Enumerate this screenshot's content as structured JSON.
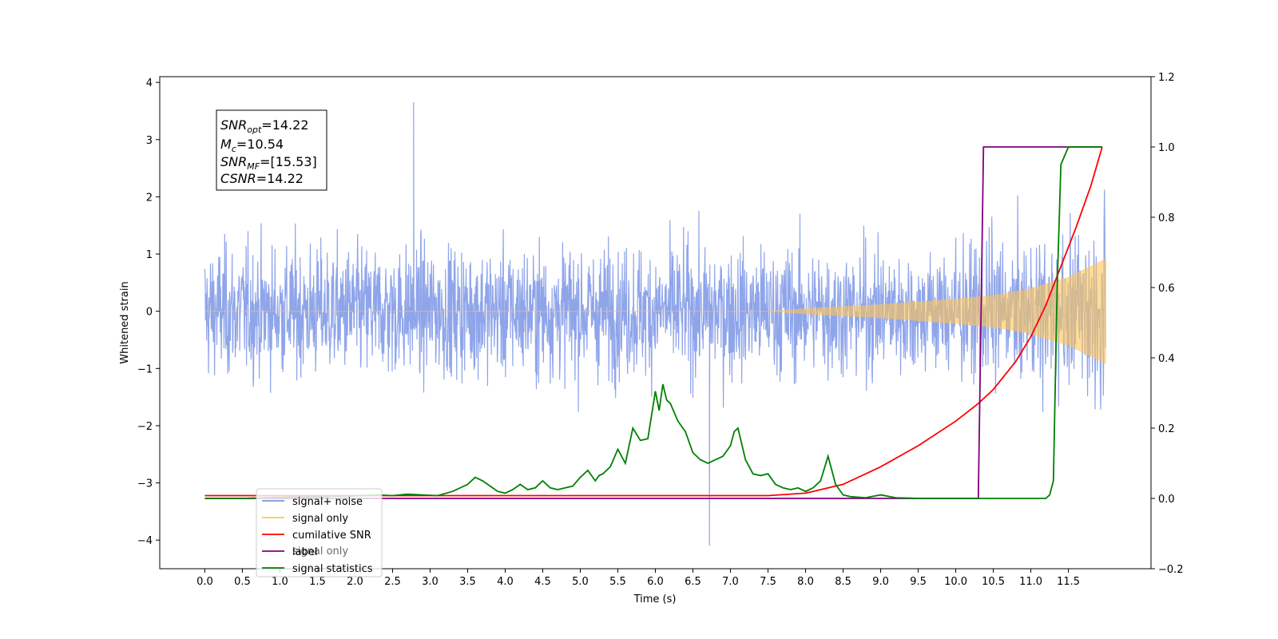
{
  "chart_data": {
    "type": "line",
    "xlabel": "Time (s)",
    "ylabel_left": "Whitened strain",
    "x_range": [
      -0.6,
      12.6
    ],
    "ylim_left": [
      -4.5,
      4.1
    ],
    "ylim_right": [
      -0.2,
      1.2
    ],
    "x_ticks": [
      "0.0",
      "0.5",
      "1.0",
      "1.5",
      "2.0",
      "2.5",
      "3.0",
      "3.5",
      "4.0",
      "4.5",
      "5.0",
      "5.5",
      "6.0",
      "6.5",
      "7.0",
      "7.5",
      "8.0",
      "8.5",
      "9.0",
      "9.5",
      "10.0",
      "10.5",
      "11.0",
      "11.5"
    ],
    "y_ticks_left": [
      "4",
      "3",
      "2",
      "1",
      "0",
      "−1",
      "−2",
      "−3",
      "−4"
    ],
    "y_ticks_right": [
      "1.2",
      "1.0",
      "0.8",
      "0.6",
      "0.4",
      "0.2",
      "0.0",
      "−0.2"
    ],
    "grid": false,
    "legend_position": "lower-left",
    "annotation": {
      "snr_opt": "=14.22",
      "mc": "=10.54",
      "snr_mf": "=[15.53]",
      "csnr": "=14.22"
    },
    "series": [
      {
        "name": "signal+ noise",
        "axis": "left",
        "color": "#7b95e6",
        "description_values": {
          "x_start": 0.0,
          "x_end": 12.0,
          "typical_amplitude": 1.0,
          "max": 3.65,
          "min": -4.1,
          "min_at_x": 6.72,
          "max_at_x": 2.78
        }
      },
      {
        "name": "signal only",
        "axis": "left",
        "color": "#ffc457",
        "envelope": {
          "x": [
            0.0,
            7.5,
            8.0,
            9.0,
            10.0,
            10.5,
            11.0,
            11.5,
            12.0
          ],
          "amp": [
            0.0,
            0.0,
            0.05,
            0.12,
            0.22,
            0.28,
            0.4,
            0.6,
            0.92
          ]
        }
      },
      {
        "name": "cumilative SNR",
        "axis": "right",
        "color": "#ff0000",
        "x": [
          0.0,
          7.5,
          8.0,
          8.5,
          9.0,
          9.5,
          10.0,
          10.3,
          10.5,
          10.8,
          11.0,
          11.2,
          11.4,
          11.6,
          11.8,
          11.95
        ],
        "values": [
          0.008,
          0.008,
          0.015,
          0.04,
          0.09,
          0.15,
          0.22,
          0.27,
          0.31,
          0.39,
          0.46,
          0.55,
          0.66,
          0.77,
          0.89,
          1.0
        ]
      },
      {
        "name": "label",
        "axis": "right",
        "color": "#800080",
        "x": [
          0.0,
          10.3,
          10.37,
          11.95
        ],
        "values": [
          0.0,
          0.0,
          1.0,
          1.0
        ]
      },
      {
        "name": "signal statistics",
        "axis": "right",
        "color": "#008000",
        "x": [
          0.0,
          0.5,
          1.0,
          1.5,
          2.0,
          2.3,
          2.5,
          2.7,
          2.9,
          3.1,
          3.3,
          3.5,
          3.6,
          3.7,
          3.8,
          3.9,
          4.0,
          4.1,
          4.2,
          4.3,
          4.4,
          4.5,
          4.6,
          4.7,
          4.8,
          4.9,
          5.0,
          5.1,
          5.2,
          5.25,
          5.3,
          5.4,
          5.5,
          5.6,
          5.7,
          5.8,
          5.9,
          6.0,
          6.05,
          6.1,
          6.15,
          6.2,
          6.3,
          6.4,
          6.5,
          6.6,
          6.7,
          6.8,
          6.9,
          7.0,
          7.05,
          7.1,
          7.2,
          7.3,
          7.4,
          7.5,
          7.6,
          7.7,
          7.8,
          7.9,
          8.0,
          8.1,
          8.2,
          8.3,
          8.4,
          8.5,
          8.6,
          8.8,
          9.0,
          9.2,
          9.5,
          10.0,
          10.5,
          11.0,
          11.1,
          11.2,
          11.25,
          11.3,
          11.35,
          11.4,
          11.5,
          11.6,
          11.95
        ],
        "values": [
          0.0,
          0.0,
          0.003,
          0.005,
          0.007,
          0.01,
          0.008,
          0.012,
          0.01,
          0.008,
          0.02,
          0.04,
          0.06,
          0.05,
          0.035,
          0.02,
          0.015,
          0.025,
          0.04,
          0.025,
          0.03,
          0.05,
          0.03,
          0.025,
          0.03,
          0.035,
          0.06,
          0.08,
          0.05,
          0.065,
          0.07,
          0.09,
          0.14,
          0.1,
          0.2,
          0.165,
          0.17,
          0.305,
          0.25,
          0.325,
          0.28,
          0.27,
          0.22,
          0.19,
          0.13,
          0.11,
          0.1,
          0.11,
          0.12,
          0.15,
          0.19,
          0.2,
          0.11,
          0.07,
          0.065,
          0.07,
          0.04,
          0.03,
          0.025,
          0.03,
          0.02,
          0.03,
          0.05,
          0.12,
          0.04,
          0.01,
          0.005,
          0.002,
          0.01,
          0.002,
          0.0,
          0.0,
          0.0,
          0.0,
          0.0,
          0.0,
          0.01,
          0.05,
          0.6,
          0.95,
          1.0,
          1.0,
          1.0
        ]
      }
    ],
    "legend_overlap_text": "signal only"
  },
  "colors": {
    "noise": "#7b95e6",
    "signal": "#ffc457",
    "csnr": "#ff0000",
    "label": "#800080",
    "stats": "#008000"
  }
}
